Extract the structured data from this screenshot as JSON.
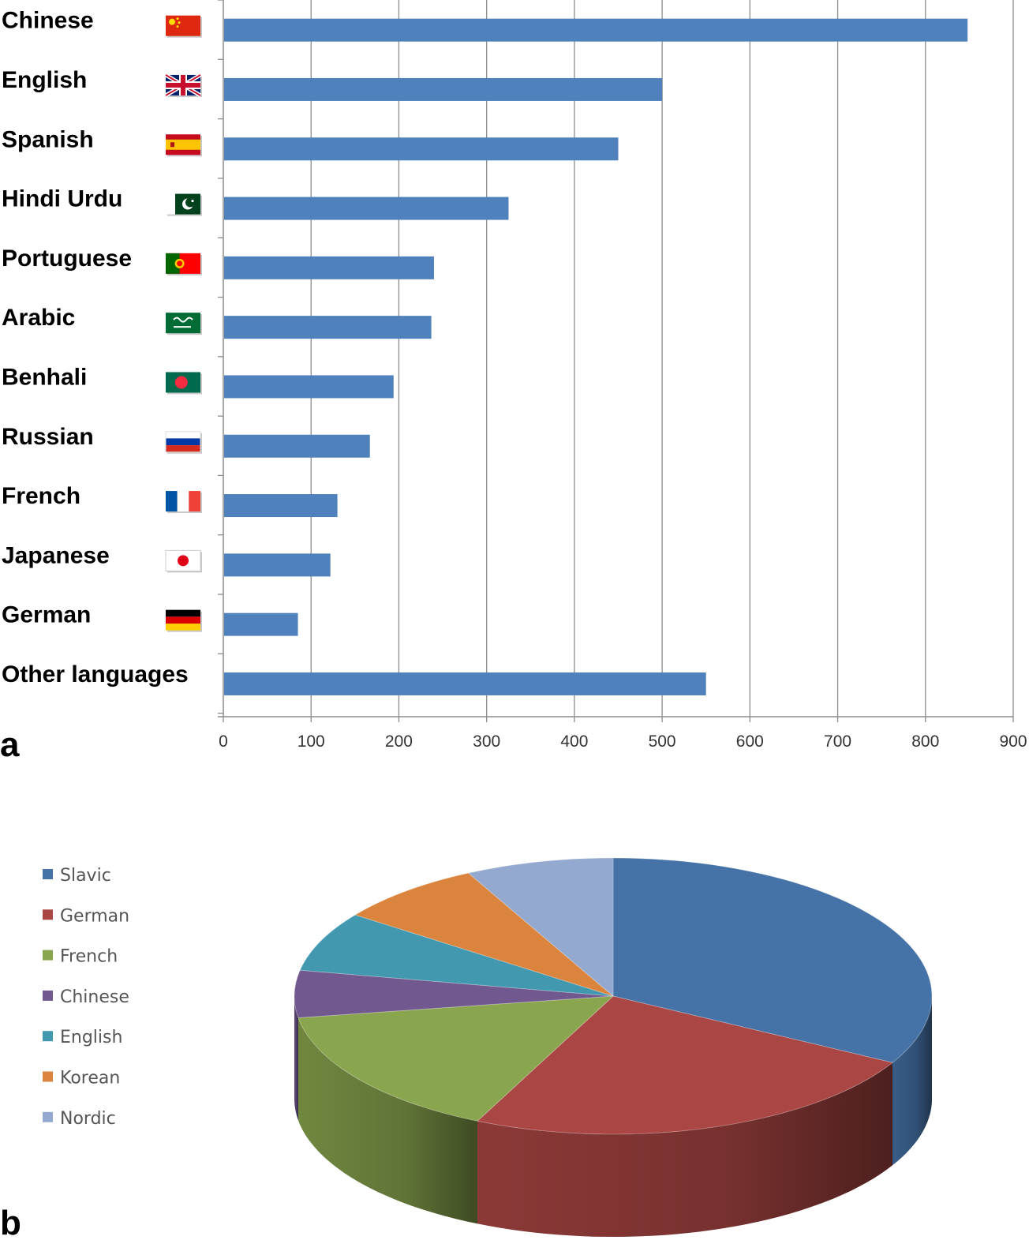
{
  "panels": {
    "a_label": "a",
    "b_label": "b"
  },
  "chart_data": [
    {
      "type": "bar",
      "orientation": "horizontal",
      "categories": [
        "Chinese",
        "English",
        "Spanish",
        "Hindi Urdu",
        "Portuguese",
        "Arabic",
        "Benhali",
        "Russian",
        "French",
        "Japanese",
        "German",
        "Other languages"
      ],
      "values": [
        848,
        500,
        450,
        325,
        240,
        237,
        194,
        167,
        130,
        122,
        85,
        550
      ],
      "flag_icons": [
        "china-flag-icon",
        "uk-flag-icon",
        "spain-flag-icon",
        "pakistan-flag-icon",
        "portugal-flag-icon",
        "saudi-arabia-flag-icon",
        "bangladesh-flag-icon",
        "russia-flag-icon",
        "france-flag-icon",
        "japan-flag-icon",
        "germany-flag-icon",
        ""
      ],
      "xlim": [
        0,
        900
      ],
      "xticks": [
        "0",
        "100",
        "200",
        "300",
        "400",
        "500",
        "600",
        "700",
        "800",
        "900"
      ],
      "grid": true,
      "bar_color": "#4f81bd",
      "title": "",
      "xlabel": "",
      "ylabel": ""
    },
    {
      "type": "pie",
      "style": "3d",
      "categories": [
        "Slavic",
        "German",
        "French",
        "Chinese",
        "English",
        "Korean",
        "Nordic"
      ],
      "values": [
        33,
        24,
        15.5,
        5.5,
        7,
        7.5,
        7.5
      ],
      "colors": [
        "#4572a7",
        "#aa4643",
        "#89a54e",
        "#71588f",
        "#4198af",
        "#db843d",
        "#93a9cf"
      ],
      "legend_position": "left",
      "title": ""
    }
  ]
}
